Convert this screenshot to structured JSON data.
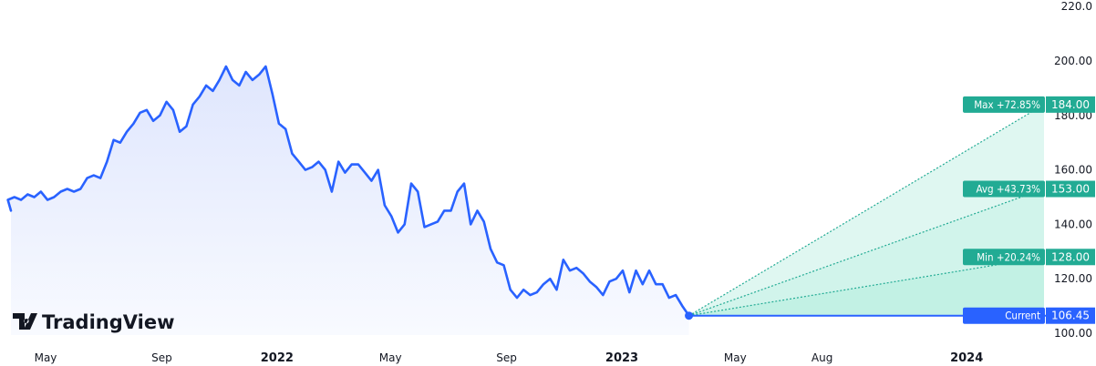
{
  "chart_data": {
    "type": "line",
    "logo": "TradingView",
    "y_axis": {
      "ticks": [
        "100.00",
        "120.00",
        "140.00",
        "160.00",
        "180.00",
        "200.00",
        "220.0"
      ],
      "ylim": [
        98,
        222
      ]
    },
    "x_axis": {
      "ticks": [
        {
          "label": "May",
          "date": "2021-05-01",
          "bold": false
        },
        {
          "label": "Sep",
          "date": "2021-09-01",
          "bold": false
        },
        {
          "label": "2022",
          "date": "2022-01-01",
          "bold": true
        },
        {
          "label": "May",
          "date": "2022-05-01",
          "bold": false
        },
        {
          "label": "Sep",
          "date": "2022-09-01",
          "bold": false
        },
        {
          "label": "2023",
          "date": "2023-01-01",
          "bold": true
        },
        {
          "label": "May",
          "date": "2023-05-01",
          "bold": false
        },
        {
          "label": "Aug",
          "date": "2023-08-01",
          "bold": false
        },
        {
          "label": "2024",
          "date": "2024-01-01",
          "bold": true
        }
      ]
    },
    "series": [
      {
        "values": [
          [
            "2021-03-15",
            145
          ],
          [
            "2021-03-22",
            149
          ],
          [
            "2021-03-29",
            150
          ],
          [
            "2021-04-05",
            149
          ],
          [
            "2021-04-12",
            151
          ],
          [
            "2021-04-19",
            150
          ],
          [
            "2021-04-26",
            152
          ],
          [
            "2021-05-03",
            149
          ],
          [
            "2021-05-10",
            150
          ],
          [
            "2021-05-17",
            152
          ],
          [
            "2021-05-24",
            153
          ],
          [
            "2021-05-31",
            152
          ],
          [
            "2021-06-07",
            153
          ],
          [
            "2021-06-14",
            157
          ],
          [
            "2021-06-21",
            158
          ],
          [
            "2021-06-28",
            157
          ],
          [
            "2021-07-05",
            163
          ],
          [
            "2021-07-12",
            171
          ],
          [
            "2021-07-19",
            170
          ],
          [
            "2021-07-26",
            174
          ],
          [
            "2021-08-02",
            177
          ],
          [
            "2021-08-09",
            181
          ],
          [
            "2021-08-16",
            182
          ],
          [
            "2021-08-23",
            178
          ],
          [
            "2021-08-30",
            180
          ],
          [
            "2021-09-06",
            185
          ],
          [
            "2021-09-13",
            182
          ],
          [
            "2021-09-20",
            174
          ],
          [
            "2021-09-27",
            176
          ],
          [
            "2021-10-04",
            184
          ],
          [
            "2021-10-11",
            187
          ],
          [
            "2021-10-18",
            191
          ],
          [
            "2021-10-25",
            189
          ],
          [
            "2021-11-01",
            193
          ],
          [
            "2021-11-08",
            198
          ],
          [
            "2021-11-15",
            193
          ],
          [
            "2021-11-22",
            191
          ],
          [
            "2021-11-29",
            196
          ],
          [
            "2021-12-06",
            193
          ],
          [
            "2021-12-13",
            195
          ],
          [
            "2021-12-20",
            198
          ],
          [
            "2021-12-27",
            188
          ],
          [
            "2022-01-03",
            177
          ],
          [
            "2022-01-10",
            175
          ],
          [
            "2022-01-17",
            166
          ],
          [
            "2022-01-24",
            163
          ],
          [
            "2022-01-31",
            160
          ],
          [
            "2022-02-07",
            161
          ],
          [
            "2022-02-14",
            163
          ],
          [
            "2022-02-21",
            160
          ],
          [
            "2022-02-28",
            152
          ],
          [
            "2022-03-07",
            163
          ],
          [
            "2022-03-14",
            159
          ],
          [
            "2022-03-21",
            162
          ],
          [
            "2022-03-28",
            162
          ],
          [
            "2022-04-04",
            159
          ],
          [
            "2022-04-11",
            156
          ],
          [
            "2022-04-18",
            160
          ],
          [
            "2022-04-25",
            147
          ],
          [
            "2022-05-02",
            143
          ],
          [
            "2022-05-09",
            137
          ],
          [
            "2022-05-16",
            140
          ],
          [
            "2022-05-23",
            155
          ],
          [
            "2022-05-30",
            152
          ],
          [
            "2022-06-06",
            139
          ],
          [
            "2022-06-13",
            140
          ],
          [
            "2022-06-20",
            141
          ],
          [
            "2022-06-27",
            145
          ],
          [
            "2022-07-04",
            145
          ],
          [
            "2022-07-11",
            152
          ],
          [
            "2022-07-18",
            155
          ],
          [
            "2022-07-25",
            140
          ],
          [
            "2022-08-01",
            145
          ],
          [
            "2022-08-08",
            141
          ],
          [
            "2022-08-15",
            131
          ],
          [
            "2022-08-22",
            126
          ],
          [
            "2022-08-29",
            125
          ],
          [
            "2022-09-05",
            116
          ],
          [
            "2022-09-12",
            113
          ],
          [
            "2022-09-19",
            116
          ],
          [
            "2022-09-26",
            114
          ],
          [
            "2022-10-03",
            115
          ],
          [
            "2022-10-10",
            118
          ],
          [
            "2022-10-17",
            120
          ],
          [
            "2022-10-24",
            116
          ],
          [
            "2022-10-31",
            127
          ],
          [
            "2022-11-07",
            123
          ],
          [
            "2022-11-14",
            124
          ],
          [
            "2022-11-21",
            122
          ],
          [
            "2022-11-28",
            119
          ],
          [
            "2022-12-05",
            117
          ],
          [
            "2022-12-12",
            114
          ],
          [
            "2022-12-19",
            119
          ],
          [
            "2022-12-26",
            120
          ],
          [
            "2023-01-02",
            123
          ],
          [
            "2023-01-09",
            115
          ],
          [
            "2023-01-16",
            123
          ],
          [
            "2023-01-23",
            118
          ],
          [
            "2023-01-30",
            123
          ],
          [
            "2023-02-06",
            118
          ],
          [
            "2023-02-13",
            118
          ],
          [
            "2023-02-20",
            113
          ],
          [
            "2023-02-27",
            114
          ],
          [
            "2023-03-06",
            110
          ],
          [
            "2023-03-13",
            106.45
          ]
        ]
      }
    ],
    "current": {
      "date": "2023-03-13",
      "label": "Current",
      "price": "106.45",
      "value": 106.45
    },
    "forecast": {
      "end_date": "2024-03-13",
      "max": {
        "label": "Max +72.85%",
        "price": "184.00",
        "value": 184
      },
      "avg": {
        "label": "Avg +43.73%",
        "price": "153.00",
        "value": 153
      },
      "min": {
        "label": "Min +20.24%",
        "price": "128.00",
        "value": 128
      }
    },
    "colors": {
      "line": "#2962ff",
      "area_top": "#dfe6fd",
      "area_bottom": "#f8faff",
      "forecast": "#22ab94",
      "forecast_fill": "#b7eedf",
      "current_label": "#2962ff"
    }
  }
}
